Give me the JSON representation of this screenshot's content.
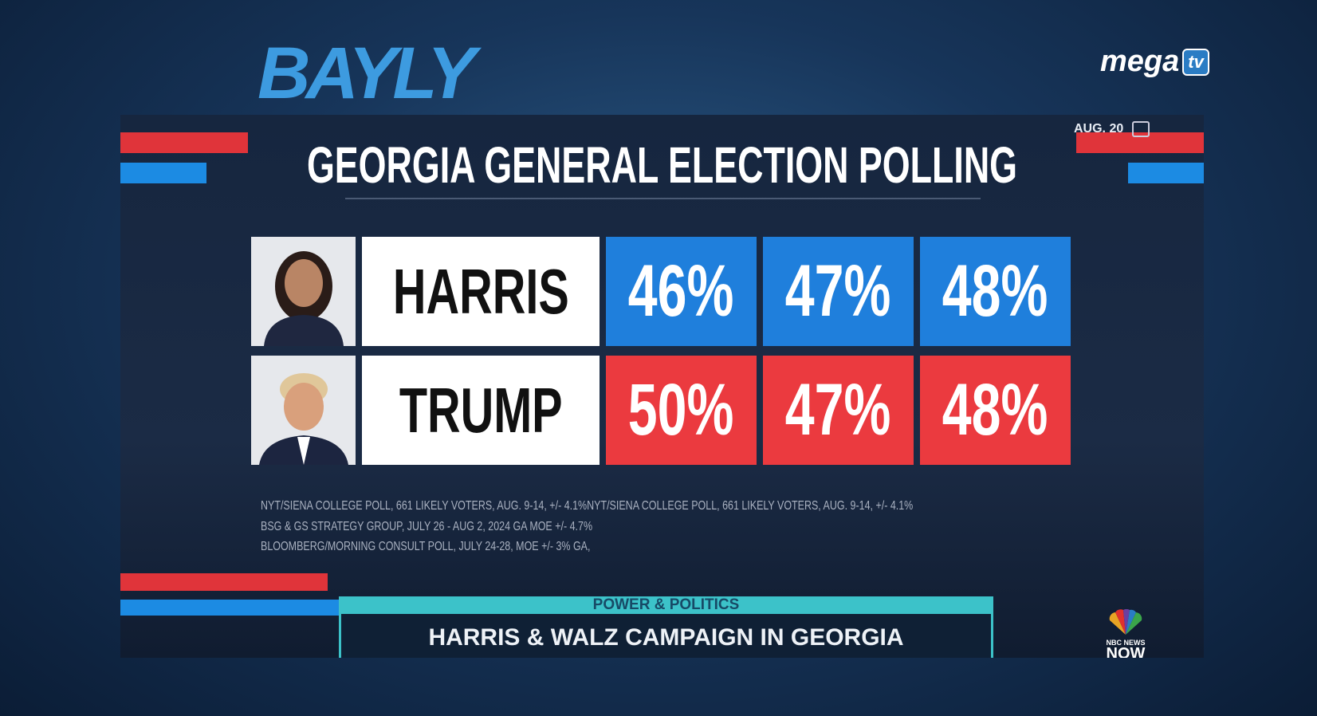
{
  "header": {
    "logo": "BAYLY",
    "channel": "mega",
    "channel_badge": "tv",
    "date": "AUG. 20",
    "title": "GEORGIA GENERAL ELECTION POLLING"
  },
  "table": {
    "rows": [
      {
        "name": "HARRIS",
        "values": [
          "46%",
          "47%",
          "48%"
        ]
      },
      {
        "name": "TRUMP",
        "values": [
          "50%",
          "47%",
          "48%"
        ]
      }
    ]
  },
  "footnotes": [
    "NYT/SIENA COLLEGE POLL, 661 LIKELY VOTERS, AUG. 9-14, +/- 4.1%NYT/SIENA COLLEGE POLL, 661 LIKELY VOTERS, AUG. 9-14, +/- 4.1%",
    "BSG & GS STRATEGY GROUP, JULY 26 - AUG 2, 2024 GA MOE +/- 4.7%",
    "BLOOMBERG/MORNING CONSULT POLL, JULY 24-28, MOE +/- 3% GA,"
  ],
  "lower_third": {
    "section": "POWER & POLITICS",
    "headline": "HARRIS & WALZ CAMPAIGN IN GEORGIA"
  },
  "network": {
    "line1": "NBC NEWS",
    "line2": "NOW"
  }
}
